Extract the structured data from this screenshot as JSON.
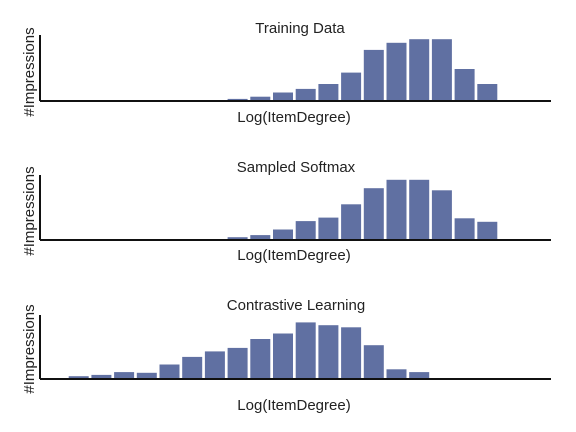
{
  "chart_data": [
    {
      "type": "bar",
      "title": "Training Data",
      "xlabel": "Log(ItemDegree)",
      "ylabel": "#Impressions",
      "ylim": [
        0,
        1.0
      ],
      "x": [
        0,
        1,
        2,
        3,
        4,
        5,
        6,
        7,
        8,
        9,
        10,
        11,
        12,
        13,
        14,
        15,
        16,
        17,
        18,
        19,
        20,
        21
      ],
      "values": [
        0,
        0,
        0,
        0,
        0,
        0,
        0,
        0,
        0.03,
        0.06,
        0.12,
        0.17,
        0.24,
        0.4,
        0.72,
        0.82,
        0.87,
        0.87,
        0.45,
        0.24,
        0,
        0
      ],
      "color": "#6070a2",
      "grid": false
    },
    {
      "type": "bar",
      "title": "Sampled Softmax",
      "xlabel": "Log(ItemDegree)",
      "ylabel": "#Impressions",
      "ylim": [
        0,
        1.0
      ],
      "x": [
        0,
        1,
        2,
        3,
        4,
        5,
        6,
        7,
        8,
        9,
        10,
        11,
        12,
        13,
        14,
        15,
        16,
        17,
        18,
        19,
        20,
        21
      ],
      "values": [
        0,
        0,
        0,
        0,
        0,
        0,
        0,
        0.01,
        0.04,
        0.07,
        0.15,
        0.27,
        0.32,
        0.51,
        0.74,
        0.86,
        0.86,
        0.71,
        0.31,
        0.26,
        0,
        0
      ],
      "color": "#6070a2",
      "grid": false
    },
    {
      "type": "bar",
      "title": "Contrastive Learning",
      "xlabel": "Log(ItemDegree)",
      "ylabel": "#Impressions",
      "ylim": [
        0,
        1.0
      ],
      "x": [
        0,
        1,
        2,
        3,
        4,
        5,
        6,
        7,
        8,
        9,
        10,
        11,
        12,
        13,
        14,
        15,
        16,
        17,
        18,
        19,
        20,
        21
      ],
      "values": [
        0,
        0.04,
        0.06,
        0.1,
        0.09,
        0.21,
        0.32,
        0.4,
        0.45,
        0.58,
        0.66,
        0.82,
        0.78,
        0.75,
        0.49,
        0.14,
        0.1,
        0,
        0,
        0,
        0,
        0
      ],
      "color": "#6070a2",
      "grid": false
    }
  ]
}
